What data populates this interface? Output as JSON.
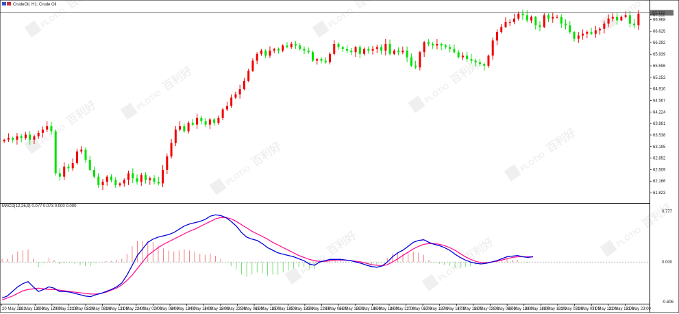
{
  "header": {
    "symbol": "CrudeOil, H1: Crude Oil"
  },
  "macd_header": "MACD(12,26,9) 0.077 0.073 0.000 0.000",
  "watermark": {
    "latin": "PLOTIO",
    "cjk": "百利好"
  },
  "colors": {
    "background": "#ffffff",
    "bull": "#f00000",
    "bear": "#00e000",
    "macd_line": "#0000dd",
    "signal_line": "#ff1493",
    "hist_pos": "#f08080",
    "hist_neg": "#7cdd7c",
    "grid": "#000000",
    "price_line": "#7a7a7a",
    "price_tag_bg": "#6e6e6e"
  },
  "current_price_label": "67.174",
  "chart_data": [
    {
      "type": "candlestick",
      "ylim": [
        61.6,
        67.35
      ],
      "price_ticks": [
        "67.111",
        "66.968",
        "66.625",
        "66.292",
        "65.939",
        "65.596",
        "65.253",
        "64.910",
        "64.567",
        "64.224",
        "63.881",
        "63.538",
        "63.195",
        "62.852",
        "62.509",
        "62.166",
        "61.823"
      ],
      "time_labels": [
        "20 May 2021",
        "20 May 13:00",
        "20 May 17:00",
        "20 May 21:00",
        "21 May 05:00",
        "21 May 09:00",
        "21 May 13:00",
        "21 May 21:00",
        "24 May 02:00",
        "24 May 06:00",
        "24 May 10:00",
        "24 May 14:00",
        "24 May 18:00",
        "24 May 22:00",
        "25 May 06:00",
        "25 May 10:00",
        "25 May 14:00",
        "25 May 18:00",
        "25 May 22:00",
        "26 May 06:00",
        "26 May 10:00",
        "26 May 14:00",
        "26 May 18:00",
        "26 May 22:00",
        "27 May 06:00",
        "27 May 10:00",
        "27 May 14:00",
        "27 May 18:00",
        "28 May 02:00",
        "28 May 06:00",
        "28 May 10:00",
        "28 May 14:00",
        "28 May 18:00",
        "31 May 03:00",
        "31 May 07:00",
        "31 May 11:00",
        "31 May 15:00",
        "31 May 23:00"
      ],
      "closes": [
        63.4,
        63.45,
        63.4,
        63.5,
        63.45,
        63.55,
        63.4,
        63.5,
        63.6,
        63.7,
        63.8,
        63.65,
        62.4,
        62.3,
        62.6,
        62.55,
        62.7,
        63.05,
        63.1,
        62.8,
        62.5,
        62.3,
        62.05,
        62.15,
        62.3,
        62.2,
        62.05,
        62.1,
        62.2,
        62.4,
        62.25,
        62.15,
        62.35,
        62.2,
        62.25,
        62.15,
        62.1,
        62.5,
        62.9,
        63.3,
        63.7,
        63.8,
        63.65,
        63.9,
        63.85,
        64.05,
        63.95,
        63.85,
        64.0,
        63.9,
        64.05,
        64.3,
        64.4,
        64.65,
        64.75,
        64.9,
        65.15,
        65.45,
        65.75,
        65.95,
        66.05,
        65.9,
        66.05,
        66.1,
        66.05,
        66.2,
        66.15,
        66.25,
        66.2,
        66.1,
        66.05,
        66.0,
        65.75,
        65.8,
        65.75,
        65.7,
        65.95,
        66.25,
        66.15,
        66.1,
        66.05,
        66.0,
        66.15,
        65.95,
        66.1,
        66.05,
        66.1,
        66.15,
        66.05,
        66.25,
        65.95,
        66.05,
        66.0,
        66.05,
        65.85,
        65.6,
        65.55,
        66.0,
        66.3,
        66.25,
        66.2,
        66.25,
        66.2,
        66.15,
        66.1,
        66.0,
        65.85,
        65.9,
        65.8,
        65.75,
        65.7,
        65.65,
        65.6,
        65.9,
        66.35,
        66.6,
        66.75,
        66.9,
        66.9,
        67.0,
        67.15,
        67.1,
        66.95,
        67.05,
        66.8,
        66.75,
        67.1,
        67.0,
        67.05,
        67.05,
        66.85,
        66.8,
        66.6,
        66.4,
        66.5,
        66.55,
        66.6,
        66.55,
        66.65,
        66.7,
        66.85,
        67.0,
        67.05,
        66.95,
        67.05,
        67.1,
        66.85,
        66.8,
        67.15
      ],
      "lows_markers": [
        61.7,
        62.0
      ]
    },
    {
      "type": "macd",
      "ylim": [
        -0.606,
        0.777
      ],
      "ticks": [
        "0.777",
        "0.000",
        "-0.606"
      ],
      "macd": [
        -0.55,
        -0.52,
        -0.45,
        -0.38,
        -0.33,
        -0.3,
        -0.38,
        -0.45,
        -0.42,
        -0.38,
        -0.4,
        -0.45,
        -0.45,
        -0.46,
        -0.48,
        -0.5,
        -0.52,
        -0.53,
        -0.5,
        -0.48,
        -0.45,
        -0.42,
        -0.38,
        -0.32,
        -0.2,
        -0.05,
        0.1,
        0.2,
        0.3,
        0.35,
        0.38,
        0.4,
        0.42,
        0.45,
        0.5,
        0.55,
        0.58,
        0.6,
        0.62,
        0.65,
        0.7,
        0.72,
        0.71,
        0.68,
        0.62,
        0.55,
        0.45,
        0.38,
        0.35,
        0.33,
        0.28,
        0.22,
        0.18,
        0.14,
        0.12,
        0.1,
        0.08,
        0.05,
        0.02,
        -0.03,
        -0.05,
        0.0,
        0.02,
        0.04,
        0.04,
        0.04,
        0.03,
        0.02,
        0.0,
        -0.02,
        -0.05,
        -0.07,
        -0.08,
        -0.06,
        0.0,
        0.08,
        0.14,
        0.18,
        0.24,
        0.3,
        0.33,
        0.34,
        0.3,
        0.27,
        0.25,
        0.22,
        0.18,
        0.12,
        0.07,
        0.03,
        0.0,
        -0.02,
        -0.03,
        -0.02,
        0.0,
        0.02,
        0.05,
        0.08,
        0.09,
        0.1,
        0.08,
        0.07,
        0.08
      ],
      "signal": [
        -0.58,
        -0.55,
        -0.52,
        -0.48,
        -0.44,
        -0.42,
        -0.41,
        -0.4,
        -0.41,
        -0.42,
        -0.42,
        -0.43,
        -0.44,
        -0.45,
        -0.46,
        -0.47,
        -0.48,
        -0.49,
        -0.49,
        -0.48,
        -0.46,
        -0.43,
        -0.4,
        -0.35,
        -0.28,
        -0.2,
        -0.1,
        0.0,
        0.1,
        0.16,
        0.22,
        0.27,
        0.31,
        0.35,
        0.39,
        0.43,
        0.47,
        0.5,
        0.54,
        0.58,
        0.62,
        0.66,
        0.68,
        0.68,
        0.66,
        0.62,
        0.57,
        0.52,
        0.47,
        0.43,
        0.39,
        0.35,
        0.3,
        0.26,
        0.22,
        0.18,
        0.14,
        0.1,
        0.07,
        0.04,
        0.02,
        0.01,
        0.01,
        0.02,
        0.03,
        0.03,
        0.03,
        0.02,
        0.01,
        0.0,
        -0.02,
        -0.04,
        -0.05,
        -0.06,
        -0.04,
        0.0,
        0.05,
        0.1,
        0.15,
        0.2,
        0.24,
        0.27,
        0.28,
        0.28,
        0.27,
        0.25,
        0.22,
        0.18,
        0.13,
        0.08,
        0.04,
        0.01,
        -0.01,
        -0.01,
        0.0,
        0.01,
        0.03,
        0.05,
        0.07,
        0.08,
        0.08,
        0.08,
        0.08
      ]
    }
  ]
}
